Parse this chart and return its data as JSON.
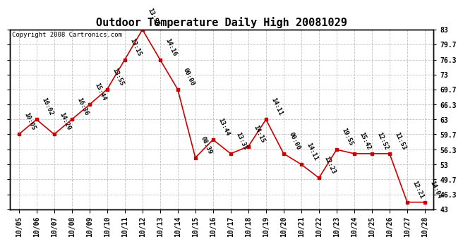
{
  "title": "Outdoor Temperature Daily High 20081029",
  "copyright_text": "Copyright 2008 Cartronics.com",
  "x_labels": [
    "10/05",
    "10/06",
    "10/07",
    "10/08",
    "10/09",
    "10/10",
    "10/11",
    "10/12",
    "10/13",
    "10/14",
    "10/15",
    "10/16",
    "10/17",
    "10/18",
    "10/19",
    "10/20",
    "10/21",
    "10/22",
    "10/23",
    "10/24",
    "10/25",
    "10/26",
    "10/27",
    "10/28"
  ],
  "y_values": [
    59.7,
    63.0,
    59.7,
    63.0,
    66.3,
    69.7,
    76.3,
    83.0,
    76.3,
    69.7,
    54.5,
    58.5,
    55.4,
    57.0,
    63.0,
    55.4,
    53.0,
    50.0,
    56.3,
    55.4,
    55.4,
    55.4,
    44.6,
    44.6
  ],
  "time_labels": [
    "10:05",
    "16:02",
    "14:20",
    "16:36",
    "15:44",
    "13:55",
    "13:15",
    "13:54",
    "14:16",
    "00:00",
    "08:39",
    "13:44",
    "13:35",
    "14:15",
    "14:11",
    "00:00",
    "14:11",
    "12:23",
    "19:55",
    "15:42",
    "12:52",
    "11:53",
    "12:21",
    "14:04"
  ],
  "ylim_min": 43.0,
  "ylim_max": 83.0,
  "yticks": [
    43.0,
    46.3,
    49.7,
    53.0,
    56.3,
    59.7,
    63.0,
    66.3,
    69.7,
    73.0,
    76.3,
    79.7,
    83.0
  ],
  "line_color": "#cc0000",
  "marker_color": "#cc0000",
  "bg_color": "#ffffff",
  "plot_bg_color": "#ffffff",
  "grid_color": "#bbbbbb",
  "title_fontsize": 11,
  "tick_fontsize": 7,
  "label_fontsize": 6.5,
  "copyright_fontsize": 6.5
}
